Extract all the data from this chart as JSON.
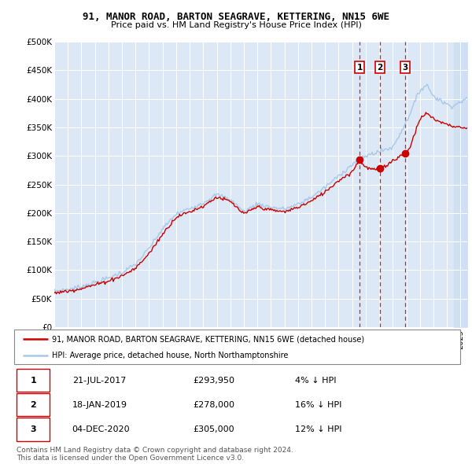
{
  "title": "91, MANOR ROAD, BARTON SEAGRAVE, KETTERING, NN15 6WE",
  "subtitle": "Price paid vs. HM Land Registry's House Price Index (HPI)",
  "hpi_color": "#a8c8e8",
  "price_color": "#cc0000",
  "marker_color": "#cc0000",
  "vline_color": "#cc0000",
  "plot_bg": "#dce8f5",
  "shade_color": "#c8dcf0",
  "ylim": [
    0,
    500000
  ],
  "yticks": [
    0,
    50000,
    100000,
    150000,
    200000,
    250000,
    300000,
    350000,
    400000,
    450000,
    500000
  ],
  "ytick_labels": [
    "£0",
    "£50K",
    "£100K",
    "£150K",
    "£200K",
    "£250K",
    "£300K",
    "£350K",
    "£400K",
    "£450K",
    "£500K"
  ],
  "transactions": [
    {
      "label": "1",
      "date": "21-JUL-2017",
      "price": 293950,
      "pct": "4% ↓ HPI",
      "x": 2017.55
    },
    {
      "label": "2",
      "date": "18-JAN-2019",
      "price": 278000,
      "pct": "16% ↓ HPI",
      "x": 2019.05
    },
    {
      "label": "3",
      "date": "04-DEC-2020",
      "price": 305000,
      "pct": "12% ↓ HPI",
      "x": 2020.92
    }
  ],
  "legend1": "91, MANOR ROAD, BARTON SEAGRAVE, KETTERING, NN15 6WE (detached house)",
  "legend2": "HPI: Average price, detached house, North Northamptonshire",
  "footer": "Contains HM Land Registry data © Crown copyright and database right 2024.\nThis data is licensed under the Open Government Licence v3.0.",
  "xmin": 1995,
  "xmax": 2025.5,
  "shade_start": 2024.5
}
